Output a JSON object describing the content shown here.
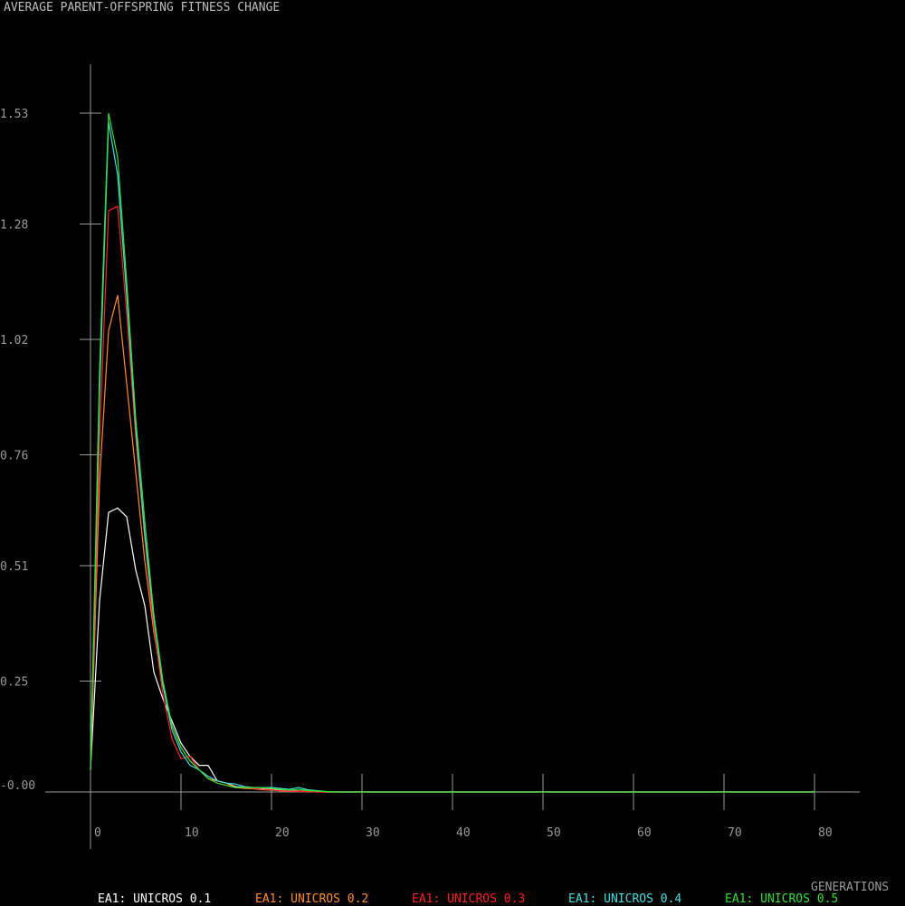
{
  "chart_data": {
    "type": "line",
    "title": "AVERAGE PARENT-OFFSPRING FITNESS CHANGE",
    "xlabel": "GENERATIONS",
    "ylabel": "",
    "xlim": [
      0,
      85
    ],
    "ylim": [
      -0.015,
      1.64
    ],
    "x_ticks": [
      0,
      10,
      20,
      30,
      40,
      50,
      60,
      70,
      80
    ],
    "x_tick_labels": [
      "0",
      "10",
      "20",
      "30",
      "40",
      "50",
      "60",
      "70",
      "80"
    ],
    "y_ticks": [
      0.0,
      0.25,
      0.51,
      0.76,
      1.02,
      1.28,
      1.53
    ],
    "y_tick_labels": [
      "-0.00",
      "0.25",
      "0.51",
      "0.76",
      "1.02",
      "1.28",
      "1.53"
    ],
    "grid": false,
    "legend_position": "bottom",
    "x": [
      0,
      1,
      2,
      3,
      4,
      5,
      6,
      7,
      8,
      9,
      10,
      11,
      12,
      13,
      14,
      15,
      16,
      17,
      18,
      19,
      20,
      21,
      22,
      23,
      24,
      25,
      26,
      27,
      28,
      29,
      30,
      40,
      50,
      60,
      70,
      80
    ],
    "series": [
      {
        "name": "EA1: UNICROS 0.1",
        "color": "#ffffff",
        "values": [
          0.05,
          0.43,
          0.63,
          0.64,
          0.62,
          0.5,
          0.42,
          0.27,
          0.21,
          0.16,
          0.11,
          0.08,
          0.06,
          0.06,
          0.025,
          0.02,
          0.012,
          0.01,
          0.008,
          0.007,
          0.006,
          0.004,
          0.003,
          0.002,
          0.001,
          0.001,
          0.0,
          0.0,
          0.0,
          0.0,
          0.0,
          0.0,
          0.0,
          0.0,
          0.0,
          0.0
        ]
      },
      {
        "name": "EA1: UNICROS 0.2",
        "color": "#ff8c2a",
        "values": [
          0.05,
          0.7,
          1.04,
          1.12,
          0.92,
          0.72,
          0.52,
          0.36,
          0.24,
          0.15,
          0.1,
          0.07,
          0.05,
          0.03,
          0.025,
          0.02,
          0.01,
          0.008,
          0.007,
          0.005,
          0.004,
          0.003,
          0.002,
          0.001,
          0.001,
          0.0,
          0.0,
          0.0,
          0.0,
          0.0,
          0.0,
          0.0,
          0.0,
          0.0,
          0.0,
          0.0
        ]
      },
      {
        "name": "EA1: UNICROS 0.3",
        "color": "#ff2020",
        "values": [
          0.05,
          0.8,
          1.31,
          1.32,
          1.08,
          0.8,
          0.57,
          0.37,
          0.22,
          0.12,
          0.075,
          0.08,
          0.05,
          0.03,
          0.02,
          0.015,
          0.01,
          0.01,
          0.008,
          0.006,
          0.005,
          0.002,
          0.002,
          0.001,
          0.001,
          0.0,
          0.0,
          0.0,
          0.0,
          0.0,
          0.0,
          0.0,
          0.0,
          0.0,
          0.0,
          0.0
        ]
      },
      {
        "name": "EA1: UNICROS 0.4",
        "color": "#40e0e0",
        "values": [
          0.05,
          0.9,
          1.51,
          1.39,
          1.12,
          0.82,
          0.58,
          0.39,
          0.24,
          0.14,
          0.09,
          0.06,
          0.05,
          0.035,
          0.025,
          0.02,
          0.018,
          0.012,
          0.01,
          0.01,
          0.01,
          0.008,
          0.006,
          0.01,
          0.005,
          0.003,
          0.001,
          0.0,
          0.0,
          0.0,
          0.0,
          0.0,
          0.0,
          0.0,
          0.0,
          0.0
        ]
      },
      {
        "name": "EA1: UNICROS 0.5",
        "color": "#30e030",
        "values": [
          0.05,
          0.95,
          1.53,
          1.43,
          1.15,
          0.84,
          0.61,
          0.4,
          0.25,
          0.15,
          0.1,
          0.07,
          0.05,
          0.03,
          0.02,
          0.015,
          0.01,
          0.01,
          0.01,
          0.01,
          0.008,
          0.006,
          0.004,
          0.006,
          0.003,
          0.002,
          0.001,
          0.0,
          0.0,
          0.0,
          0.0,
          0.0,
          0.0,
          0.0,
          0.0,
          0.0
        ]
      }
    ]
  }
}
